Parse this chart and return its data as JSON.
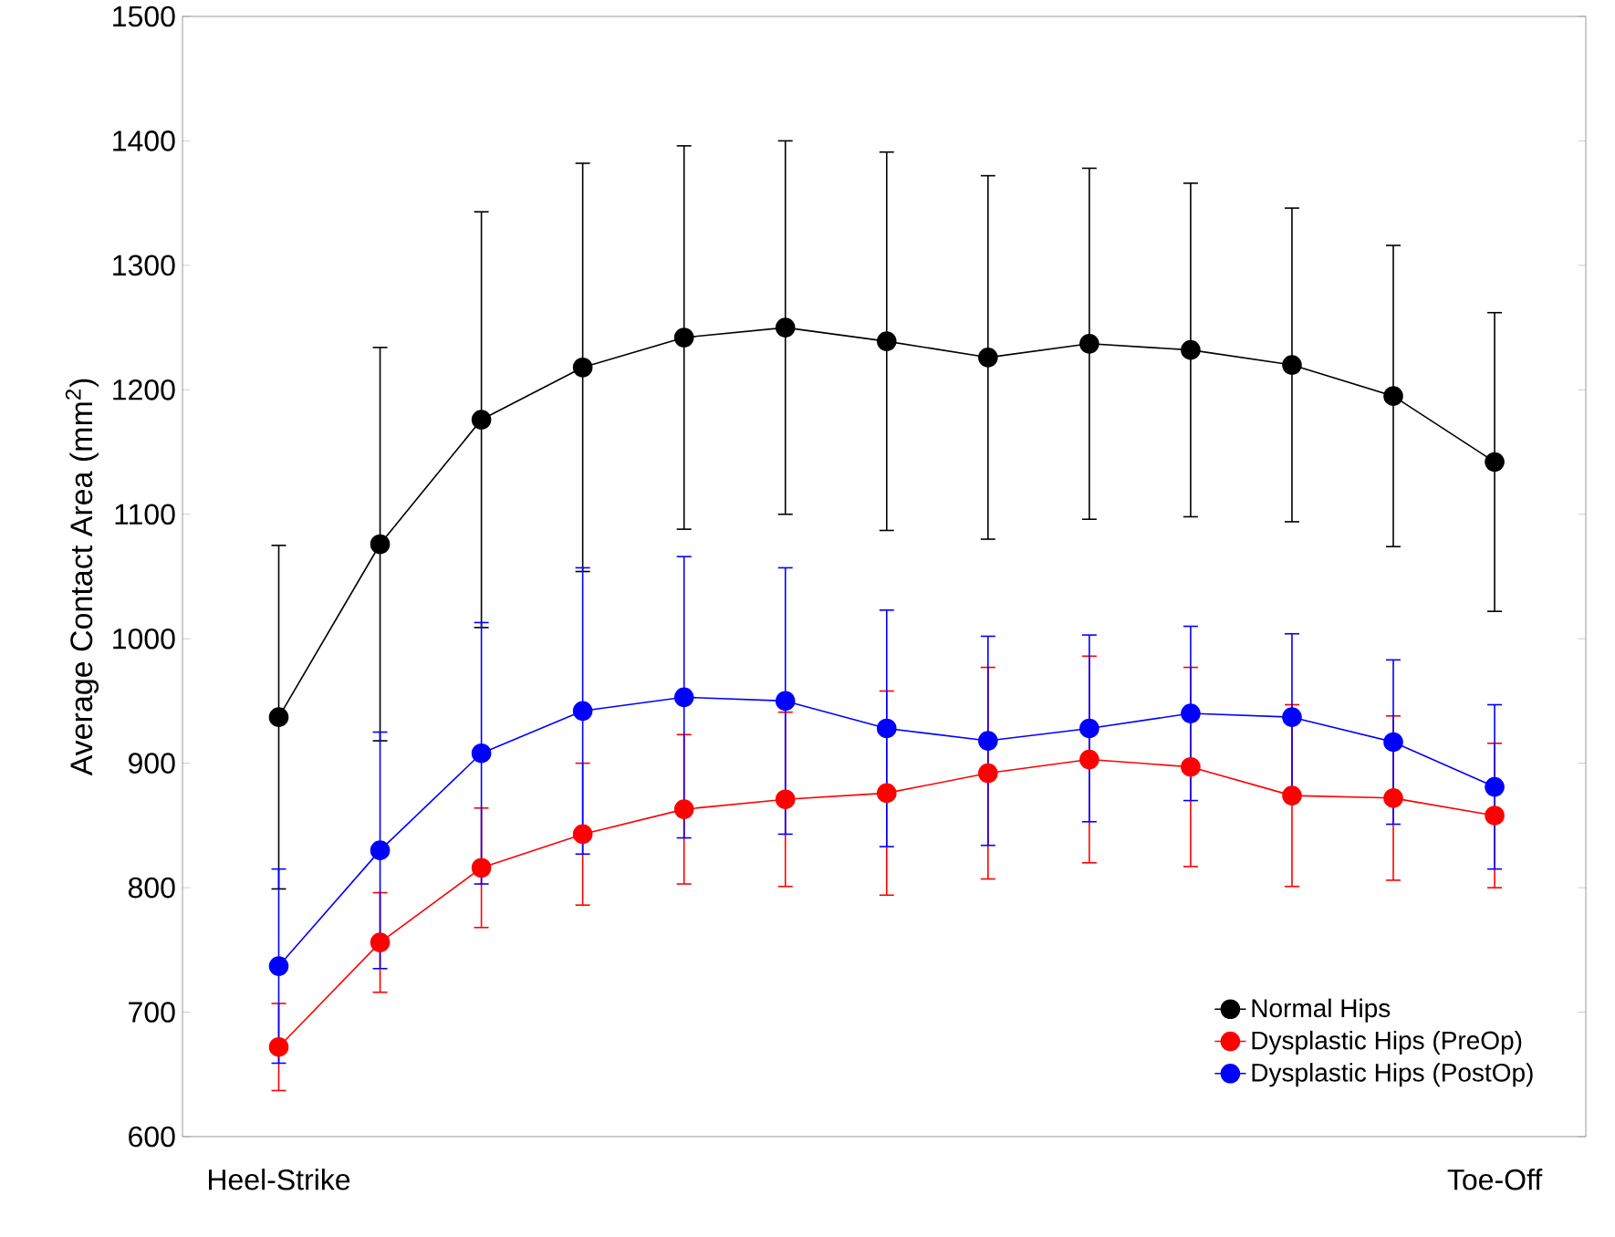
{
  "chart_data": {
    "type": "line",
    "ylabel": "Average Contact Area (mm$^{2}$)",
    "categories": [
      "Heel-Strike",
      null,
      null,
      null,
      null,
      null,
      null,
      null,
      null,
      null,
      null,
      null,
      "Toe-Off"
    ],
    "ylim": [
      600,
      1500
    ],
    "yticks": [
      600,
      700,
      800,
      900,
      1000,
      1100,
      1200,
      1300,
      1400,
      1500
    ],
    "marker": "circle",
    "legend": "bottom right",
    "series": [
      {
        "name": "Normal Hips",
        "color": "#000000",
        "values": [
          937,
          1076,
          1176,
          1218,
          1242,
          1250,
          1239,
          1226,
          1237,
          1232,
          1220,
          1195,
          1142
        ],
        "errors": [
          138,
          158,
          167,
          164,
          154,
          150,
          152,
          146,
          141,
          134,
          126,
          121,
          120
        ]
      },
      {
        "name": "Dysplastic Hips (PreOp)",
        "color": "#ff0000",
        "values": [
          672,
          756,
          816,
          843,
          863,
          871,
          876,
          892,
          903,
          897,
          874,
          872,
          858
        ],
        "errors": [
          35,
          40,
          48,
          57,
          60,
          70,
          82,
          85,
          83,
          80,
          73,
          66,
          58
        ]
      },
      {
        "name": "Dysplastic Hips (PostOp)",
        "color": "#0000ff",
        "values": [
          737,
          830,
          908,
          942,
          953,
          950,
          928,
          918,
          928,
          940,
          937,
          917,
          881
        ],
        "errors": [
          78,
          95,
          105,
          115,
          113,
          107,
          95,
          84,
          75,
          70,
          67,
          66,
          66
        ]
      }
    ]
  }
}
